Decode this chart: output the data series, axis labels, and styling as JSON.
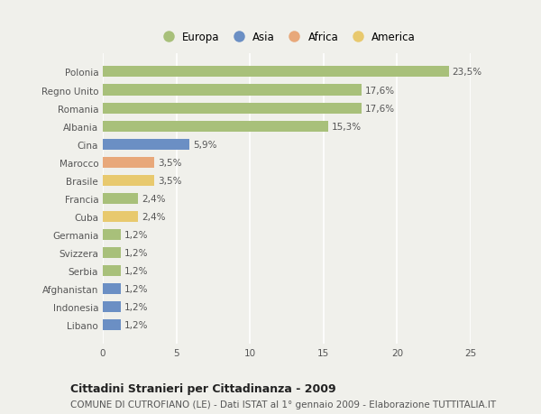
{
  "categories": [
    "Polonia",
    "Regno Unito",
    "Romania",
    "Albania",
    "Cina",
    "Marocco",
    "Brasile",
    "Francia",
    "Cuba",
    "Germania",
    "Svizzera",
    "Serbia",
    "Afghanistan",
    "Indonesia",
    "Libano"
  ],
  "values": [
    23.5,
    17.6,
    17.6,
    15.3,
    5.9,
    3.5,
    3.5,
    2.4,
    2.4,
    1.2,
    1.2,
    1.2,
    1.2,
    1.2,
    1.2
  ],
  "labels": [
    "23,5%",
    "17,6%",
    "17,6%",
    "15,3%",
    "5,9%",
    "3,5%",
    "3,5%",
    "2,4%",
    "2,4%",
    "1,2%",
    "1,2%",
    "1,2%",
    "1,2%",
    "1,2%",
    "1,2%"
  ],
  "colors": [
    "#a8c07a",
    "#a8c07a",
    "#a8c07a",
    "#a8c07a",
    "#6b8fc4",
    "#e8a87a",
    "#e8c96e",
    "#a8c07a",
    "#e8c96e",
    "#a8c07a",
    "#a8c07a",
    "#a8c07a",
    "#6b8fc4",
    "#6b8fc4",
    "#6b8fc4"
  ],
  "legend_labels": [
    "Europa",
    "Asia",
    "Africa",
    "America"
  ],
  "legend_colors": [
    "#a8c07a",
    "#6b8fc4",
    "#e8a87a",
    "#e8c96e"
  ],
  "xlim": [
    0,
    25
  ],
  "xticks": [
    0,
    5,
    10,
    15,
    20,
    25
  ],
  "title": "Cittadini Stranieri per Cittadinanza - 2009",
  "subtitle": "COMUNE DI CUTROFIANO (LE) - Dati ISTAT al 1° gennaio 2009 - Elaborazione TUTTITALIA.IT",
  "background_color": "#f0f0eb",
  "bar_height": 0.6,
  "grid_color": "#ffffff",
  "label_fontsize": 7.5,
  "tick_fontsize": 7.5,
  "legend_fontsize": 8.5,
  "title_fontsize": 9.0,
  "subtitle_fontsize": 7.5
}
